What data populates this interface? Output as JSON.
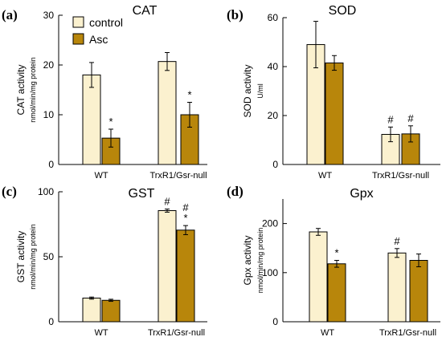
{
  "colors": {
    "control": "#fbf1cf",
    "asc": "#b8860b",
    "stroke": "#000000"
  },
  "legend": {
    "items": [
      {
        "name": "control",
        "color": "#fbf1cf"
      },
      {
        "name": "Asc",
        "color": "#b8860b"
      }
    ]
  },
  "chart_data": [
    {
      "panel": "(a)",
      "type": "bar",
      "title": "CAT",
      "ylabel": "CAT activity",
      "ylabel_unit": "nmol/min/mg protein",
      "ylim": [
        0,
        30
      ],
      "yticks": [
        "0",
        "10",
        "20",
        "30"
      ],
      "categories": [
        "WT",
        "TrxR1/Gsr-null"
      ],
      "series": [
        {
          "name": "control",
          "values": [
            18.0,
            20.7
          ],
          "errors": [
            2.5,
            1.8
          ],
          "marks": [
            "",
            ""
          ]
        },
        {
          "name": "Asc",
          "values": [
            5.3,
            10.0
          ],
          "errors": [
            1.8,
            2.5
          ],
          "marks": [
            "*",
            "*"
          ]
        }
      ]
    },
    {
      "panel": "(b)",
      "type": "bar",
      "title": "SOD",
      "ylabel": "SOD activity",
      "ylabel_unit": "U/ml",
      "ylim": [
        0,
        60
      ],
      "yticks": [
        "0",
        "20",
        "40",
        "60"
      ],
      "categories": [
        "WT",
        "TrxR1/Gsr-null"
      ],
      "series": [
        {
          "name": "control",
          "values": [
            49,
            12.3
          ],
          "errors": [
            9.5,
            3.0
          ],
          "marks": [
            "",
            "#"
          ]
        },
        {
          "name": "Asc",
          "values": [
            41.5,
            12.5
          ],
          "errors": [
            3.0,
            3.3
          ],
          "marks": [
            "",
            "#"
          ]
        }
      ]
    },
    {
      "panel": "(c)",
      "type": "bar",
      "title": "GST",
      "ylabel": "GST activity",
      "ylabel_unit": "nmol/min/mg protein",
      "ylim": [
        0,
        100
      ],
      "yticks": [
        "0",
        "50",
        "100"
      ],
      "categories": [
        "WT",
        "TrxR1/Gsr-null"
      ],
      "series": [
        {
          "name": "control",
          "values": [
            18.2,
            85.5
          ],
          "errors": [
            0.8,
            1.2
          ],
          "marks": [
            "",
            "#"
          ]
        },
        {
          "name": "Asc",
          "values": [
            16.5,
            70.5
          ],
          "errors": [
            0.8,
            3.5
          ],
          "marks": [
            "",
            "#\n*"
          ]
        }
      ]
    },
    {
      "panel": "(d)",
      "type": "bar",
      "title": "Gpx",
      "ylabel": "Gpx activity",
      "ylabel_unit": "nmol/min/mg protein",
      "ylim": [
        0,
        250
      ],
      "yticks": [
        "0",
        "100",
        "200"
      ],
      "categories": [
        "WT",
        "TrxR1/Gsr-null"
      ],
      "series": [
        {
          "name": "control",
          "values": [
            183,
            140
          ],
          "errors": [
            7,
            9
          ],
          "marks": [
            "",
            "#"
          ]
        },
        {
          "name": "Asc",
          "values": [
            118,
            125
          ],
          "errors": [
            7,
            13
          ],
          "marks": [
            "*",
            ""
          ]
        }
      ]
    }
  ]
}
